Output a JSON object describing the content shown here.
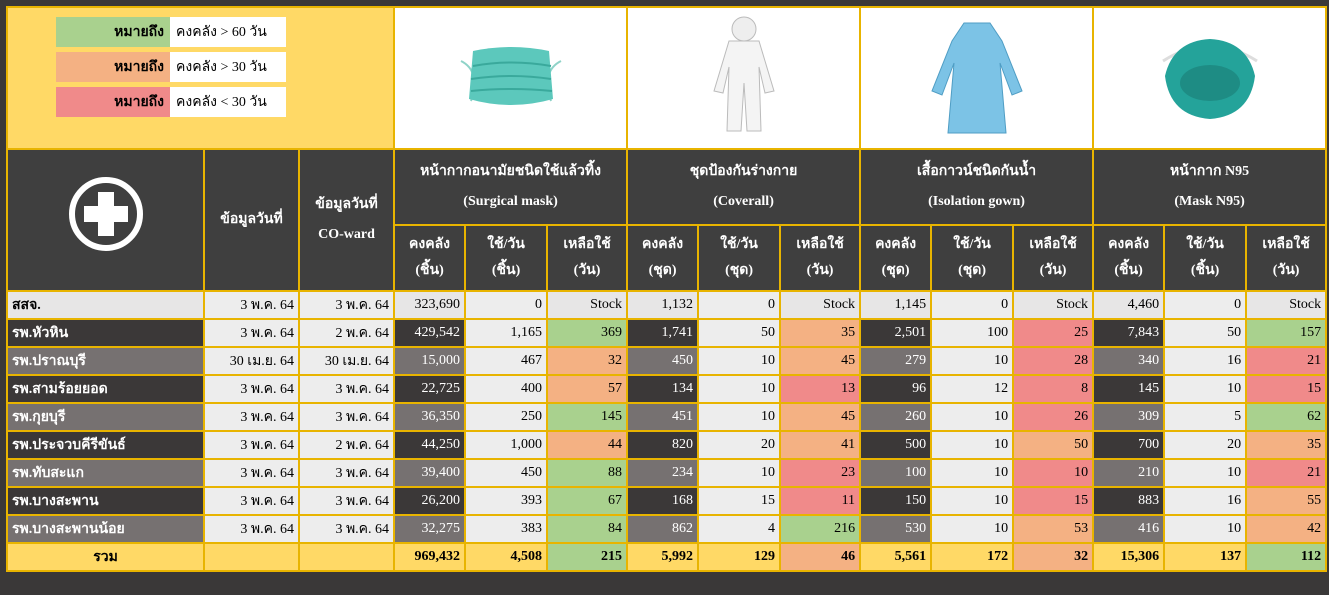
{
  "legend": [
    {
      "label": "หมายถึง",
      "text": "คงคลัง > 60 วัน",
      "color": "#a9d18e"
    },
    {
      "label": "หมายถึง",
      "text": "คงคลัง > 30 วัน",
      "color": "#f4b183"
    },
    {
      "label": "หมายถึง",
      "text": "คงคลัง < 30 วัน",
      "color": "#f08a8a"
    }
  ],
  "header": {
    "date_label": "ข้อมูลวันที่",
    "co_date_label": [
      "ข้อมูลวันที่",
      "CO-ward"
    ]
  },
  "products": [
    {
      "name": "หน้ากากอนามัยชนิดใช้แล้วทิ้ง",
      "name_en": "(Surgical mask)",
      "columns": [
        [
          "คงคลัง",
          "(ชิ้น)"
        ],
        [
          "ใช้/วัน",
          "(ชิ้น)"
        ],
        [
          "เหลือใช้",
          "(วัน)"
        ]
      ]
    },
    {
      "name": "ชุดป้องกันร่างกาย",
      "name_en": "(Coverall)",
      "columns": [
        [
          "คงคลัง",
          "(ชุด)"
        ],
        [
          "ใช้/วัน",
          "(ชุด)"
        ],
        [
          "เหลือใช้",
          "(วัน)"
        ]
      ]
    },
    {
      "name": "เสื้อกาวน์ชนิดกันน้ำ",
      "name_en": "(Isolation gown)",
      "columns": [
        [
          "คงคลัง",
          "(ชุด)"
        ],
        [
          "ใช้/วัน",
          "(ชุด)"
        ],
        [
          "เหลือใช้",
          "(วัน)"
        ]
      ]
    },
    {
      "name": "หน้ากาก N95",
      "name_en": "(Mask N95)",
      "columns": [
        [
          "คงคลัง",
          "(ชิ้น)"
        ],
        [
          "ใช้/วัน",
          "(ชิ้น)"
        ],
        [
          "เหลือใช้",
          "(วัน)"
        ]
      ]
    }
  ],
  "rows": [
    {
      "name": "สสจ.",
      "date": "3 พ.ค. 64",
      "co_date": "3 พ.ค. 64",
      "values": [
        "323,690",
        "0",
        "Stock",
        "1,132",
        "0",
        "Stock",
        "1,145",
        "0",
        "Stock",
        "4,460",
        "0",
        "Stock"
      ],
      "colors": [
        "#e7e6e6",
        "#e7e6e6",
        "#e7e6e6",
        "#e7e6e6"
      ]
    },
    {
      "name": "รพ.หัวหิน",
      "date": "3 พ.ค. 64",
      "co_date": "2 พ.ค. 64",
      "values": [
        "429,542",
        "1,165",
        "369",
        "1,741",
        "50",
        "35",
        "2,501",
        "100",
        "25",
        "7,843",
        "50",
        "157"
      ],
      "colors": [
        "#a9d18e",
        "#f4b183",
        "#f08a8a",
        "#a9d18e"
      ]
    },
    {
      "name": "รพ.ปราณบุรี",
      "date": "30 เม.ย. 64",
      "co_date": "30 เม.ย. 64",
      "values": [
        "15,000",
        "467",
        "32",
        "450",
        "10",
        "45",
        "279",
        "10",
        "28",
        "340",
        "16",
        "21"
      ],
      "colors": [
        "#f4b183",
        "#f4b183",
        "#f08a8a",
        "#f08a8a"
      ]
    },
    {
      "name": "รพ.สามร้อยยอด",
      "date": "3 พ.ค. 64",
      "co_date": "3 พ.ค. 64",
      "values": [
        "22,725",
        "400",
        "57",
        "134",
        "10",
        "13",
        "96",
        "12",
        "8",
        "145",
        "10",
        "15"
      ],
      "colors": [
        "#f4b183",
        "#f08a8a",
        "#f08a8a",
        "#f08a8a"
      ]
    },
    {
      "name": "รพ.กุยบุรี",
      "date": "3 พ.ค. 64",
      "co_date": "3 พ.ค. 64",
      "values": [
        "36,350",
        "250",
        "145",
        "451",
        "10",
        "45",
        "260",
        "10",
        "26",
        "309",
        "5",
        "62"
      ],
      "colors": [
        "#a9d18e",
        "#f4b183",
        "#f08a8a",
        "#a9d18e"
      ]
    },
    {
      "name": "รพ.ประจวบคีรีขันธ์",
      "date": "3 พ.ค. 64",
      "co_date": "2 พ.ค. 64",
      "values": [
        "44,250",
        "1,000",
        "44",
        "820",
        "20",
        "41",
        "500",
        "10",
        "50",
        "700",
        "20",
        "35"
      ],
      "colors": [
        "#f4b183",
        "#f4b183",
        "#f4b183",
        "#f4b183"
      ]
    },
    {
      "name": "รพ.ทับสะแก",
      "date": "3 พ.ค. 64",
      "co_date": "3 พ.ค. 64",
      "values": [
        "39,400",
        "450",
        "88",
        "234",
        "10",
        "23",
        "100",
        "10",
        "10",
        "210",
        "10",
        "21"
      ],
      "colors": [
        "#a9d18e",
        "#f08a8a",
        "#f08a8a",
        "#f08a8a"
      ]
    },
    {
      "name": "รพ.บางสะพาน",
      "date": "3 พ.ค. 64",
      "co_date": "3 พ.ค. 64",
      "values": [
        "26,200",
        "393",
        "67",
        "168",
        "15",
        "11",
        "150",
        "10",
        "15",
        "883",
        "16",
        "55"
      ],
      "colors": [
        "#a9d18e",
        "#f08a8a",
        "#f08a8a",
        "#f4b183"
      ]
    },
    {
      "name": "รพ.บางสะพานน้อย",
      "date": "3 พ.ค. 64",
      "co_date": "3 พ.ค. 64",
      "values": [
        "32,275",
        "383",
        "84",
        "862",
        "4",
        "216",
        "530",
        "10",
        "53",
        "416",
        "10",
        "42"
      ],
      "colors": [
        "#a9d18e",
        "#a9d18e",
        "#f4b183",
        "#f4b183"
      ]
    }
  ],
  "total": {
    "label": "รวม",
    "values": [
      "969,432",
      "4,508",
      "215",
      "5,992",
      "129",
      "46",
      "5,561",
      "172",
      "32",
      "15,306",
      "137",
      "112"
    ],
    "colors": [
      "#a9d18e",
      "#f4b183",
      "#f4b183",
      "#a9d18e"
    ]
  }
}
